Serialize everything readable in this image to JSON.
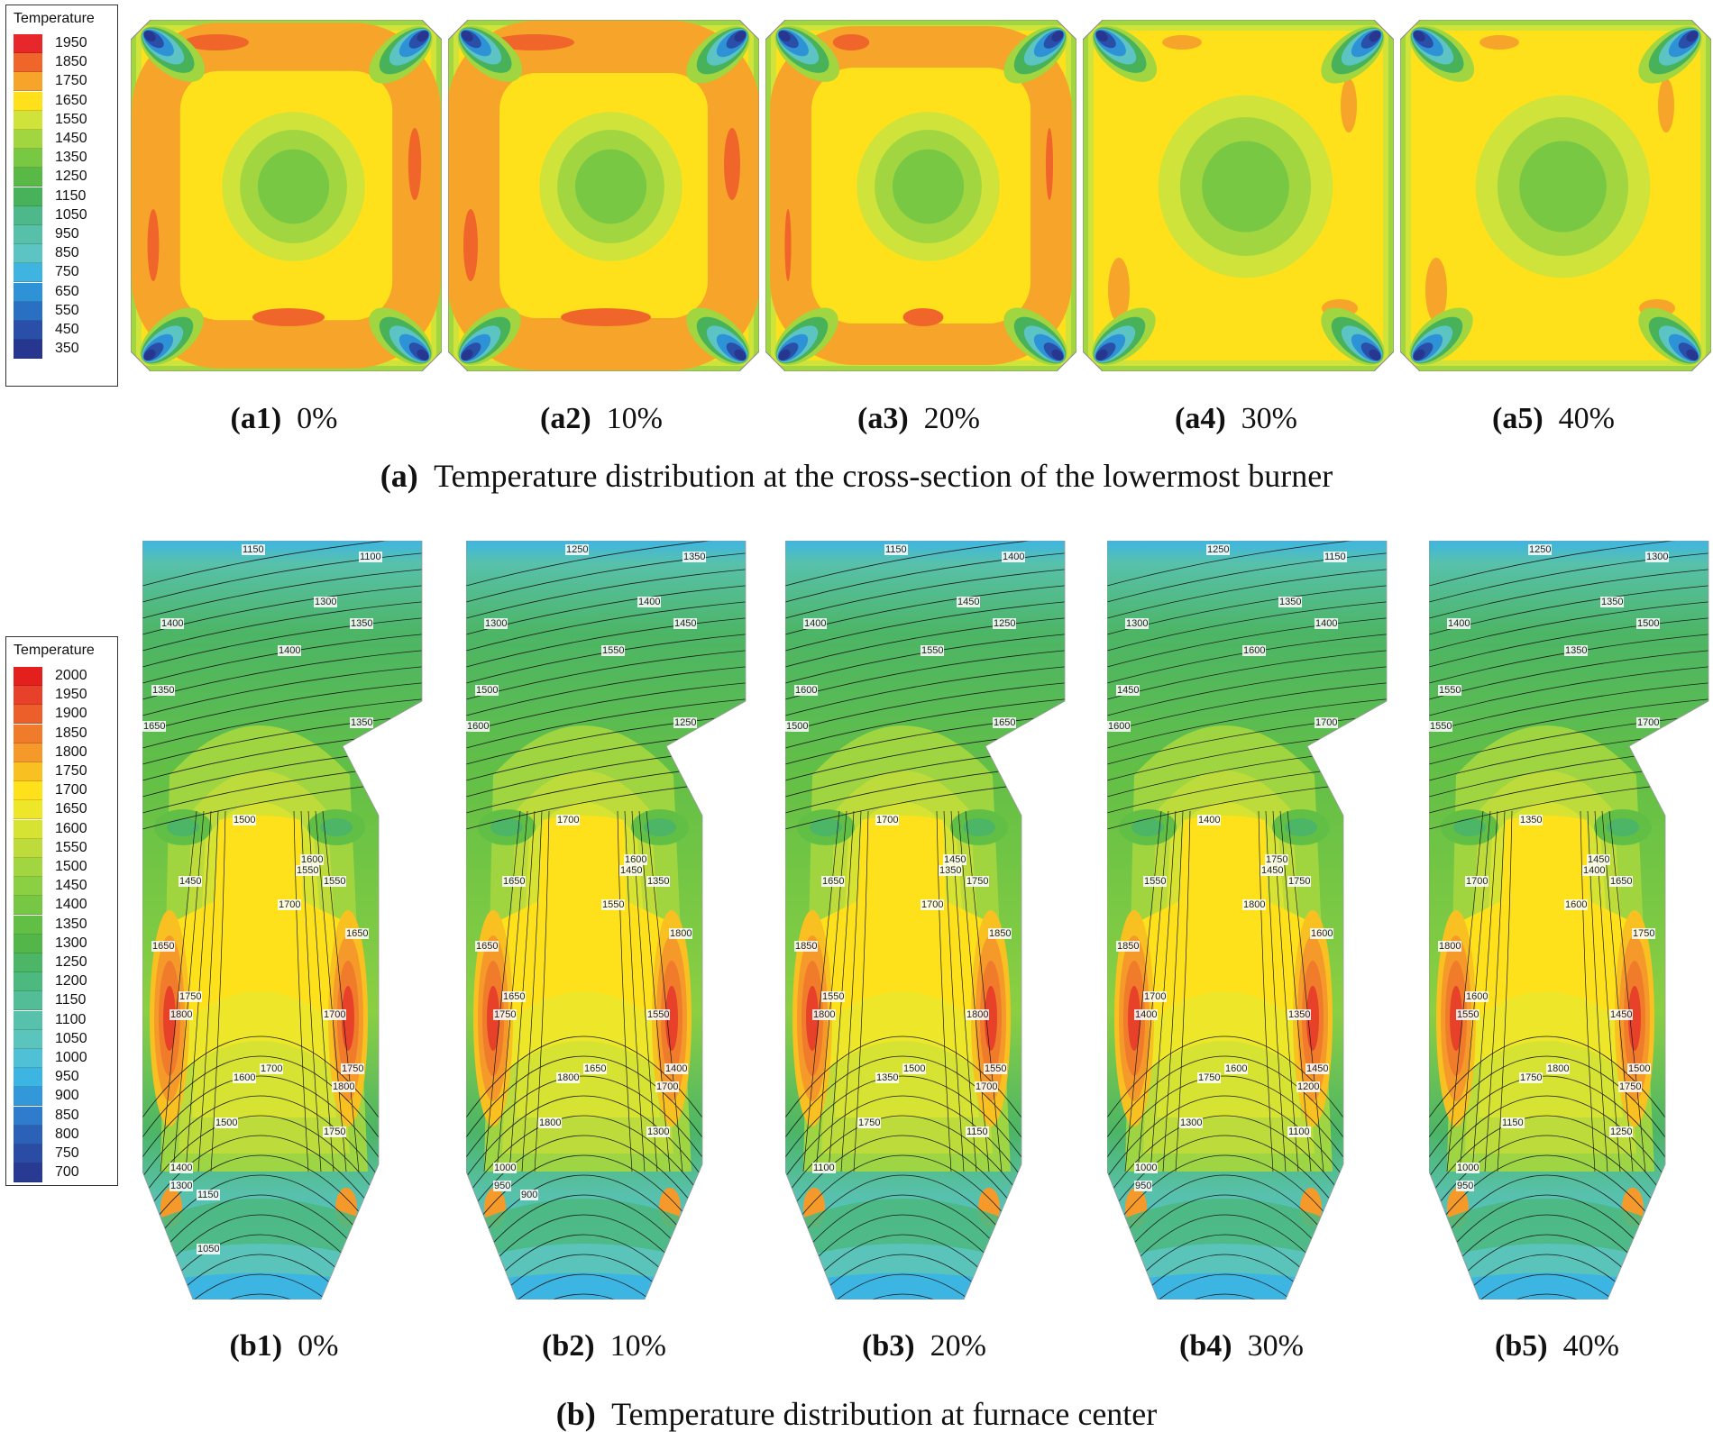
{
  "figure": {
    "legend_a": {
      "title": "Temperature",
      "entries": [
        {
          "label": "1950",
          "color": "#e8272a"
        },
        {
          "label": "1850",
          "color": "#f0662a"
        },
        {
          "label": "1750",
          "color": "#f7a42a"
        },
        {
          "label": "1650",
          "color": "#ffe11b"
        },
        {
          "label": "1550",
          "color": "#cfe33a"
        },
        {
          "label": "1450",
          "color": "#a2d640"
        },
        {
          "label": "1350",
          "color": "#79c843"
        },
        {
          "label": "1250",
          "color": "#58b947"
        },
        {
          "label": "1150",
          "color": "#48b25b"
        },
        {
          "label": "1050",
          "color": "#4db88a"
        },
        {
          "label": "950",
          "color": "#58c0a8"
        },
        {
          "label": "850",
          "color": "#5dc4c4"
        },
        {
          "label": "750",
          "color": "#3fb4e1"
        },
        {
          "label": "650",
          "color": "#2e92d6"
        },
        {
          "label": "550",
          "color": "#2a70c2"
        },
        {
          "label": "450",
          "color": "#2a4fa8"
        },
        {
          "label": "350",
          "color": "#27368e"
        }
      ]
    },
    "legend_b": {
      "title": "Temperature",
      "entries": [
        {
          "label": "2000",
          "color": "#e3201d"
        },
        {
          "label": "1950",
          "color": "#e8412a"
        },
        {
          "label": "1900",
          "color": "#ec5f2a"
        },
        {
          "label": "1850",
          "color": "#f07b2a"
        },
        {
          "label": "1800",
          "color": "#f59a2a"
        },
        {
          "label": "1750",
          "color": "#f9c021"
        },
        {
          "label": "1700",
          "color": "#ffe11b"
        },
        {
          "label": "1650",
          "color": "#eee628"
        },
        {
          "label": "1600",
          "color": "#d6e333"
        },
        {
          "label": "1550",
          "color": "#bddc3b"
        },
        {
          "label": "1500",
          "color": "#a2d640"
        },
        {
          "label": "1450",
          "color": "#8bcf42"
        },
        {
          "label": "1400",
          "color": "#76c744"
        },
        {
          "label": "1350",
          "color": "#62bf46"
        },
        {
          "label": "1300",
          "color": "#52b748"
        },
        {
          "label": "1250",
          "color": "#4cb566"
        },
        {
          "label": "1200",
          "color": "#4cb97f"
        },
        {
          "label": "1150",
          "color": "#52bd97"
        },
        {
          "label": "1100",
          "color": "#58c1ab"
        },
        {
          "label": "1050",
          "color": "#5bc4bd"
        },
        {
          "label": "1000",
          "color": "#4fc0d6"
        },
        {
          "label": "950",
          "color": "#3db5e3"
        },
        {
          "label": "900",
          "color": "#3398d9"
        },
        {
          "label": "850",
          "color": "#2e7ccb"
        },
        {
          "label": "800",
          "color": "#2b62b8"
        },
        {
          "label": "750",
          "color": "#2a4ca4"
        },
        {
          "label": "700",
          "color": "#283a92"
        }
      ]
    },
    "row_a": {
      "panels": [
        {
          "id": "(a1)",
          "value": "0%"
        },
        {
          "id": "(a2)",
          "value": "10%"
        },
        {
          "id": "(a3)",
          "value": "20%"
        },
        {
          "id": "(a4)",
          "value": "30%"
        },
        {
          "id": "(a5)",
          "value": "40%"
        }
      ],
      "caption_id": "(a)",
      "caption_text": "Temperature distribution at the cross-section of the lowermost burner"
    },
    "row_b": {
      "panels": [
        {
          "id": "(b1)",
          "value": "0%",
          "labels": [
            "1150",
            "1100",
            "1300",
            "1400",
            "1350",
            "1400",
            "1350",
            "1350",
            "1650",
            "1500",
            "1600",
            "1550",
            "1450",
            "1550",
            "1700",
            "1650",
            "1650",
            "1750",
            "1800",
            "1700",
            "1700",
            "1600",
            "1750",
            "1800",
            "1500",
            "1750",
            "1400",
            "1300",
            "1150",
            "1050"
          ]
        },
        {
          "id": "(b2)",
          "value": "10%",
          "labels": [
            "1250",
            "1350",
            "1400",
            "1300",
            "1450",
            "1550",
            "1500",
            "1250",
            "1600",
            "1700",
            "1600",
            "1450",
            "1650",
            "1350",
            "1550",
            "1650",
            "1800",
            "1650",
            "1750",
            "1550",
            "1650",
            "1800",
            "1400",
            "1700",
            "1800",
            "1300",
            "1000",
            "950",
            "900"
          ]
        },
        {
          "id": "(b3)",
          "value": "20%",
          "labels": [
            "1150",
            "1400",
            "1450",
            "1400",
            "1250",
            "1550",
            "1600",
            "1650",
            "1500",
            "1700",
            "1450",
            "1350",
            "1650",
            "1750",
            "1700",
            "1850",
            "1850",
            "1550",
            "1800",
            "1800",
            "1500",
            "1350",
            "1550",
            "1700",
            "1750",
            "1150",
            "1100"
          ]
        },
        {
          "id": "(b4)",
          "value": "30%",
          "labels": [
            "1250",
            "1150",
            "1350",
            "1300",
            "1400",
            "1600",
            "1450",
            "1700",
            "1600",
            "1400",
            "1750",
            "1450",
            "1550",
            "1750",
            "1800",
            "1850",
            "1600",
            "1700",
            "1400",
            "1350",
            "1600",
            "1750",
            "1450",
            "1200",
            "1300",
            "1100",
            "1000",
            "950"
          ]
        },
        {
          "id": "(b5)",
          "value": "40%",
          "labels": [
            "1250",
            "1300",
            "1350",
            "1400",
            "1500",
            "1350",
            "1550",
            "1700",
            "1550",
            "1350",
            "1450",
            "1400",
            "1700",
            "1650",
            "1600",
            "1800",
            "1750",
            "1600",
            "1550",
            "1450",
            "1800",
            "1750",
            "1500",
            "1750",
            "1150",
            "1250",
            "1000",
            "950"
          ]
        }
      ],
      "caption_id": "(b)",
      "caption_text": "Temperature distribution at furnace center"
    }
  }
}
